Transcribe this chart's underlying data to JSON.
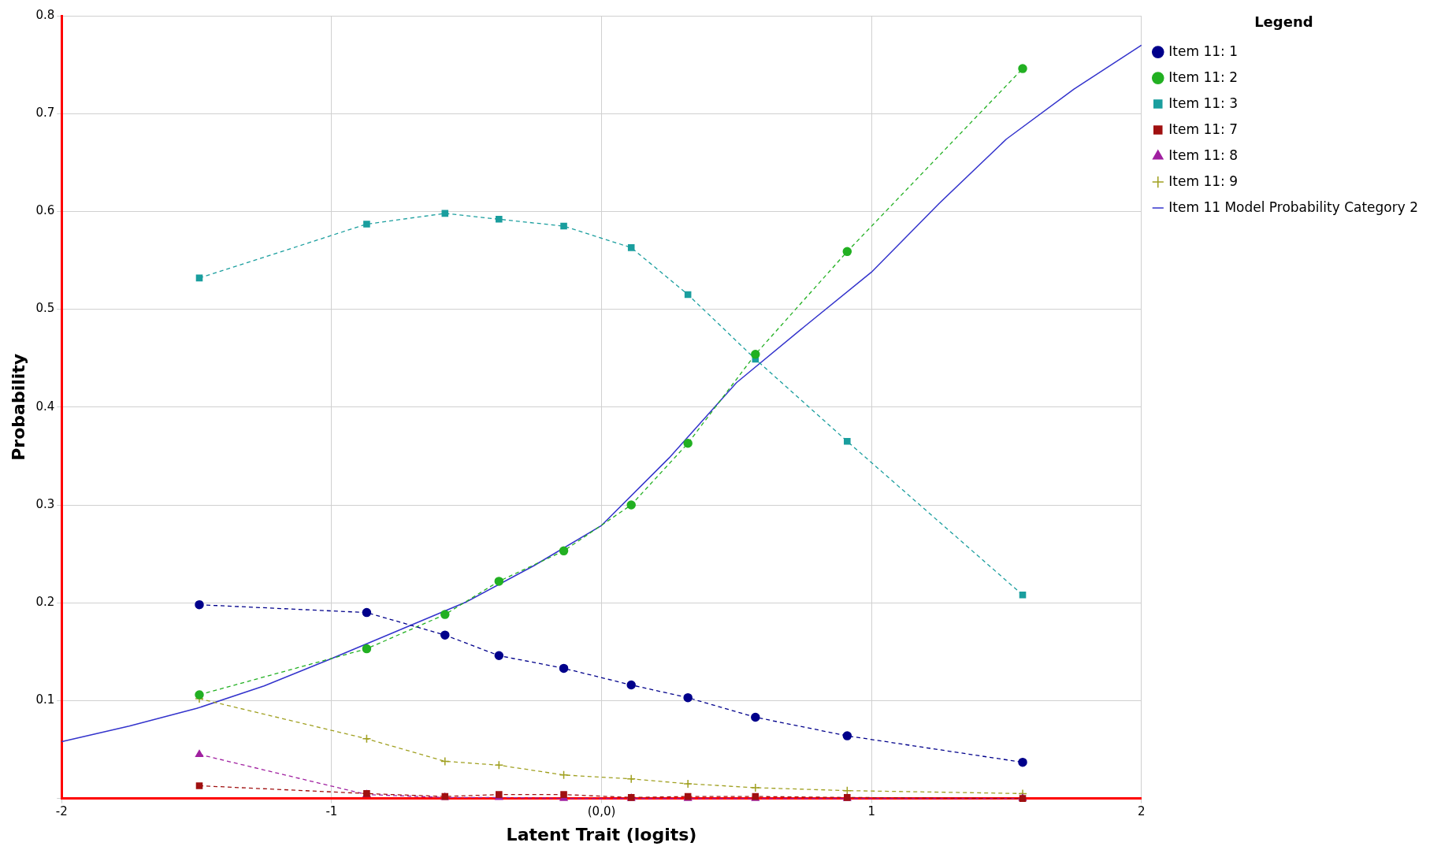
{
  "chart_data": {
    "type": "line",
    "xlabel": "Latent Trait (logits)",
    "ylabel": "Probability",
    "legend_title": "Legend",
    "legend": "right",
    "grid": true,
    "x": [
      -1.49,
      -0.87,
      -0.58,
      -0.38,
      -0.14,
      0.11,
      0.32,
      0.57,
      0.91,
      1.56
    ],
    "xlim": [
      -2,
      2
    ],
    "xticks": [
      -2,
      -1,
      {
        "value": 0,
        "label": "(0,0)"
      },
      1,
      2
    ],
    "ylim": [
      0,
      0.8
    ],
    "yticks": [
      {
        "value": 0,
        "label": null
      },
      0.1,
      0.2,
      0.3,
      0.4,
      0.5,
      0.6,
      0.7,
      0.8
    ],
    "series": [
      {
        "name": "Item 11: 1",
        "color": "#00008b",
        "marker": "circle",
        "line_style": "dashed",
        "values": [
          0.198,
          0.19,
          0.167,
          0.146,
          0.133,
          0.116,
          0.103,
          0.083,
          0.064,
          0.037
        ]
      },
      {
        "name": "Item 11: 2",
        "color": "#22b022",
        "marker": "circle",
        "line_style": "dashed",
        "values": [
          0.106,
          0.153,
          0.188,
          0.222,
          0.253,
          0.3,
          0.363,
          0.454,
          0.559,
          0.746
        ]
      },
      {
        "name": "Item 11: 3",
        "color": "#1a9e9e",
        "marker": "square",
        "line_style": "dashed",
        "values": [
          0.532,
          0.587,
          0.598,
          0.592,
          0.585,
          0.563,
          0.515,
          0.449,
          0.365,
          0.208
        ]
      },
      {
        "name": "Item 11: 7",
        "color": "#a01010",
        "marker": "square",
        "line_style": "dashed",
        "values": [
          0.013,
          0.005,
          0.002,
          0.004,
          0.004,
          0.001,
          0.002,
          0.002,
          0.001,
          0.0
        ]
      },
      {
        "name": "Item 11: 8",
        "color": "#a020a0",
        "marker": "triangle",
        "line_style": "dashed",
        "values": [
          0.045,
          0.004,
          0.001,
          0.001,
          0.0,
          0.0,
          0.0,
          0.0,
          0.0,
          0.0
        ]
      },
      {
        "name": "Item 11: 9",
        "color": "#a0a020",
        "marker": "cross",
        "line_style": "dashed",
        "values": [
          0.102,
          0.061,
          0.038,
          0.034,
          0.024,
          0.02,
          0.015,
          0.011,
          0.008,
          0.005
        ]
      },
      {
        "name": "Item 11 Model Probability Category 2",
        "color": "#3333cc",
        "marker": "none",
        "line_style": "solid",
        "x": [
          -2,
          -1.75,
          -1.5,
          -1.25,
          -1,
          -0.75,
          -0.5,
          -0.25,
          0,
          0.25,
          0.5,
          0.75,
          1,
          1.25,
          1.5,
          1.75,
          2
        ],
        "values": [
          0.058,
          0.074,
          0.092,
          0.115,
          0.143,
          0.172,
          0.201,
          0.238,
          0.279,
          0.348,
          0.425,
          0.482,
          0.538,
          0.608,
          0.674,
          0.725,
          0.77
        ]
      }
    ]
  }
}
